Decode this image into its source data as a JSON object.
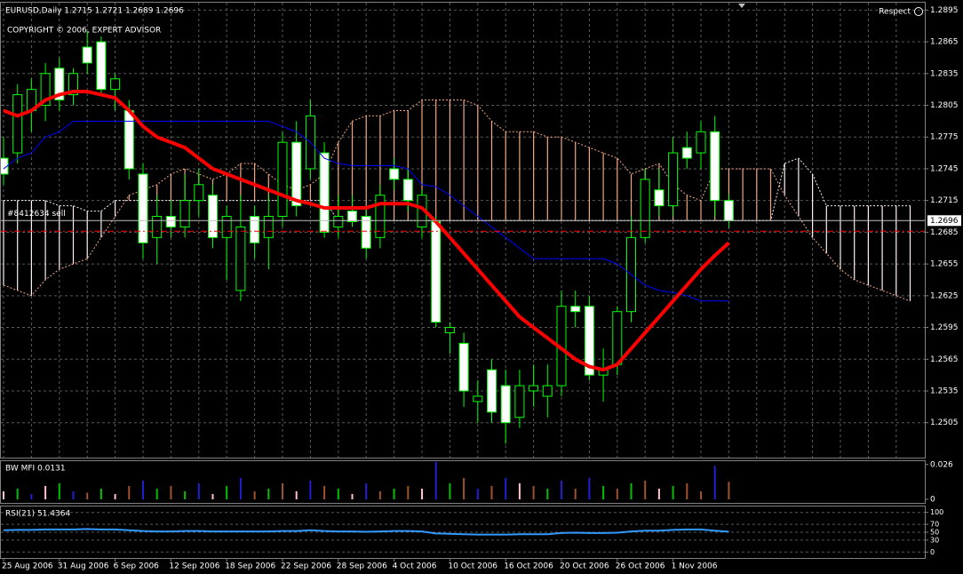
{
  "chart_data": [
    {
      "type": "candlestick",
      "title": "EURUSD,Daily  1.2715 1.2721 1.2689 1.2696",
      "subtitle": "COPYRIGHT © 2006, EXPERT ADVISOR",
      "corner_label": "Respect",
      "categories": [
        "25 Aug 2006",
        null,
        null,
        null,
        "31 Aug 2006",
        null,
        null,
        null,
        "6 Sep 2006",
        null,
        null,
        null,
        "12 Sep 2006",
        null,
        null,
        null,
        "18 Sep 2006",
        null,
        null,
        null,
        "22 Sep 2006",
        null,
        null,
        null,
        "28 Sep 2006",
        null,
        null,
        null,
        "4 Oct 2006",
        null,
        null,
        null,
        "10 Oct 2006",
        null,
        null,
        null,
        "16 Oct 2006",
        null,
        null,
        null,
        "20 Oct 2006",
        null,
        null,
        null,
        "26 Oct 2006",
        null,
        null,
        null,
        "1 Nov 2006",
        null,
        null,
        null,
        null,
        null,
        null,
        null,
        null,
        null,
        null,
        null,
        null,
        null,
        null,
        null,
        null,
        null
      ],
      "candles": {
        "bull_color": "#000000",
        "bear_color": "#ffffff",
        "wick_color": "#00ff00",
        "open": [
          1.2755,
          1.276,
          1.28,
          1.2805,
          1.284,
          1.2815,
          1.286,
          1.2865,
          1.282,
          1.28,
          1.274,
          1.268,
          1.27,
          1.269,
          1.2715,
          1.272,
          1.268,
          1.263,
          1.27,
          1.268,
          1.27,
          1.277,
          1.2745,
          1.276,
          1.269,
          1.2705,
          1.27,
          1.268,
          1.2745,
          1.2735,
          1.269,
          1.2695,
          1.259,
          1.258,
          1.2525,
          1.2555,
          1.254,
          1.251,
          1.2535,
          1.253,
          1.254,
          1.2615,
          1.2615,
          1.255,
          1.256,
          1.261,
          1.268,
          1.2725,
          1.271,
          1.2765,
          1.276,
          1.278,
          1.2715,
          null,
          null,
          null,
          null,
          null,
          null,
          null,
          null,
          null,
          null,
          null,
          null,
          null
        ],
        "high": [
          1.2775,
          1.2825,
          1.283,
          1.2845,
          1.285,
          1.284,
          1.2875,
          1.287,
          1.2835,
          1.281,
          1.275,
          1.272,
          1.2715,
          1.274,
          1.2745,
          1.273,
          1.271,
          1.272,
          1.271,
          1.272,
          1.278,
          1.279,
          1.281,
          1.277,
          1.272,
          1.272,
          1.271,
          1.273,
          1.2755,
          1.2745,
          1.2725,
          1.27,
          1.26,
          1.259,
          1.2545,
          1.2565,
          1.2555,
          1.2555,
          1.256,
          1.256,
          1.263,
          1.263,
          1.2625,
          1.2575,
          1.2615,
          1.27,
          1.2745,
          1.2745,
          1.2775,
          1.278,
          1.279,
          1.2795,
          1.2721,
          null,
          null,
          null,
          null,
          null,
          null,
          null,
          null,
          null,
          null,
          null,
          null,
          null
        ],
        "low": [
          1.273,
          1.275,
          1.278,
          1.279,
          1.28,
          1.2805,
          1.2835,
          1.2815,
          1.28,
          1.2735,
          1.266,
          1.2655,
          1.268,
          1.268,
          1.27,
          1.267,
          1.264,
          1.262,
          1.266,
          1.265,
          1.269,
          1.27,
          1.2735,
          1.268,
          1.268,
          1.269,
          1.266,
          1.267,
          1.2725,
          1.2705,
          1.268,
          1.2595,
          1.257,
          1.252,
          1.2505,
          1.2505,
          1.2485,
          1.25,
          1.252,
          1.251,
          1.253,
          1.2595,
          1.2545,
          1.2525,
          1.255,
          1.26,
          1.2675,
          1.27,
          1.27,
          1.2745,
          1.2745,
          1.27,
          1.2689,
          null,
          null,
          null,
          null,
          null,
          null,
          null,
          null,
          null,
          null,
          null,
          null,
          null
        ],
        "close": [
          1.274,
          1.2815,
          1.282,
          1.2835,
          1.281,
          1.2835,
          1.2845,
          1.282,
          1.283,
          1.2745,
          1.2675,
          1.27,
          1.269,
          1.2715,
          1.273,
          1.268,
          1.27,
          1.269,
          1.2675,
          1.27,
          1.277,
          1.271,
          1.2795,
          1.2685,
          1.27,
          1.2695,
          1.267,
          1.272,
          1.2735,
          1.2715,
          1.272,
          1.26,
          1.2595,
          1.2535,
          1.253,
          1.2515,
          1.2505,
          1.254,
          1.254,
          1.254,
          1.2615,
          1.261,
          1.255,
          1.2555,
          1.261,
          1.268,
          1.2735,
          1.271,
          1.276,
          1.2755,
          1.278,
          1.2715,
          1.2696,
          null,
          null,
          null,
          null,
          null,
          null,
          null,
          null,
          null,
          null,
          null,
          null,
          null
        ]
      },
      "cloud": [
        {
          "color": "#f4a582",
          "values": [
            1.2635,
            1.263,
            1.2625,
            1.264,
            1.265,
            1.2655,
            1.266,
            1.268,
            1.27,
            1.272,
            1.2725,
            1.273,
            1.274,
            1.2745,
            1.274,
            1.2735,
            1.274,
            1.275,
            1.275,
            1.274,
            1.273,
            1.2725,
            1.273,
            1.274,
            1.277,
            1.279,
            1.2795,
            1.2795,
            1.28,
            1.28,
            1.281,
            1.281,
            1.281,
            1.281,
            1.2805,
            1.279,
            1.278,
            1.278,
            1.278,
            1.2775,
            1.2775,
            1.277,
            1.2765,
            1.276,
            1.2755,
            1.274,
            1.2745,
            1.275,
            1.273,
            1.272,
            1.2715,
            1.2745,
            1.2745,
            1.2745,
            1.2745,
            1.2745,
            1.272,
            1.27,
            1.268,
            1.2665,
            1.265,
            1.264,
            1.2635,
            1.263,
            1.2625,
            1.262
          ]
        },
        {
          "color": "#fff0f0",
          "values": [
            1.2715,
            1.2715,
            1.2715,
            1.2715,
            1.271,
            1.271,
            1.2705,
            1.2705,
            1.2715,
            1.2715,
            1.2715,
            1.2715,
            1.2715,
            1.2715,
            1.2715,
            1.2715,
            1.2715,
            1.2715,
            1.2715,
            1.2715,
            1.2715,
            1.2715,
            1.2715,
            1.2715,
            1.2696,
            1.2696,
            1.2696,
            1.2696,
            1.2696,
            1.2696,
            1.2696,
            1.2696,
            1.2696,
            1.2696,
            1.2696,
            1.2696,
            1.2696,
            1.2696,
            1.2696,
            1.2696,
            1.2696,
            1.2696,
            1.2696,
            1.2696,
            1.2696,
            1.2696,
            1.2696,
            1.2696,
            1.2696,
            1.2696,
            1.2696,
            1.2696,
            1.2696,
            1.2696,
            1.2696,
            1.2696,
            1.275,
            1.2755,
            1.274,
            1.271,
            1.271,
            1.271,
            1.271,
            1.271,
            1.271,
            1.271
          ]
        }
      ],
      "lines": [
        {
          "color": "#0000ff",
          "width": 1,
          "values": [
            1.2745,
            1.2755,
            1.276,
            1.2775,
            1.278,
            1.279,
            1.279,
            1.279,
            1.279,
            1.279,
            1.279,
            1.279,
            1.279,
            1.279,
            1.279,
            1.279,
            1.279,
            1.279,
            1.279,
            1.279,
            1.2785,
            1.278,
            1.277,
            1.2755,
            1.275,
            1.2748,
            1.2748,
            1.2748,
            1.2748,
            1.2745,
            1.273,
            1.2728,
            1.272,
            1.271,
            1.27,
            1.269,
            1.268,
            1.267,
            1.266,
            1.266,
            1.266,
            1.266,
            1.266,
            1.266,
            1.2655,
            1.2645,
            1.2635,
            1.263,
            1.2628,
            1.2625,
            1.262,
            1.262,
            1.262,
            null,
            null,
            null,
            null,
            null,
            null,
            null,
            null,
            null,
            null,
            null,
            null,
            null
          ]
        },
        {
          "color": "#ff0000",
          "width": 4,
          "values": [
            1.28,
            1.2795,
            1.28,
            1.281,
            1.2815,
            1.2818,
            1.2818,
            1.2815,
            1.2812,
            1.28,
            1.2785,
            1.2775,
            1.277,
            1.2765,
            1.2755,
            1.2745,
            1.274,
            1.2735,
            1.273,
            1.2725,
            1.272,
            1.2715,
            1.2712,
            1.2708,
            1.2708,
            1.2708,
            1.2708,
            1.2712,
            1.2712,
            1.2712,
            1.2708,
            1.2695,
            1.268,
            1.2665,
            1.265,
            1.2635,
            1.262,
            1.2605,
            1.2595,
            1.2585,
            1.2575,
            1.2565,
            1.2558,
            1.2555,
            1.256,
            1.2575,
            1.259,
            1.2605,
            1.262,
            1.2635,
            1.265,
            1.2663,
            1.2675,
            null,
            null,
            null,
            null,
            null,
            null,
            null,
            null,
            null,
            null,
            null,
            null,
            null
          ]
        }
      ],
      "levels": [
        {
          "value": 1.2696,
          "label": "#8412634 sell",
          "color": "#c0c0c0"
        },
        {
          "value": 1.2686,
          "color": "#ff0000",
          "dash": "7,3,2,3"
        }
      ],
      "price_label": 1.2696,
      "ylim": [
        1.2472,
        1.2902
      ],
      "yticks": [
        1.2505,
        1.2535,
        1.2565,
        1.2595,
        1.2625,
        1.2655,
        1.2685,
        1.2715,
        1.2745,
        1.2775,
        1.2805,
        1.2835,
        1.2865,
        1.2895
      ],
      "grid": true
    },
    {
      "type": "bar",
      "title": "BW MFI 0.0131",
      "values": [
        0.006,
        0.008,
        0.004,
        0.01,
        0.012,
        0.006,
        0.005,
        0.008,
        0.004,
        0.01,
        0.014,
        0.008,
        0.01,
        0.006,
        0.012,
        0.004,
        0.01,
        0.016,
        0.006,
        0.008,
        0.012,
        0.006,
        0.014,
        0.01,
        0.008,
        0.004,
        0.012,
        0.006,
        0.008,
        0.01,
        0.008,
        0.028,
        0.012,
        0.016,
        0.008,
        0.01,
        0.016,
        0.012,
        0.01,
        0.008,
        0.014,
        0.008,
        0.016,
        0.01,
        0.008,
        0.012,
        0.014,
        0.008,
        0.01,
        0.012,
        0.006,
        0.025,
        0.0131
      ],
      "colors": [
        "#ffc0cb",
        "#00c000",
        "#2020d0",
        "#ffc0cb",
        "#00c000",
        "#2020d0",
        "#a0522d",
        "#00c000",
        "#ffc0cb",
        "#a0522d",
        "#2020d0",
        "#00c000",
        "#a0522d",
        "#00c000",
        "#2020d0",
        "#ffc0cb",
        "#00c000",
        "#2020d0",
        "#a0522d",
        "#00c000",
        "#a0522d",
        "#ffc0cb",
        "#2020d0",
        "#a0522d",
        "#00c000",
        "#ffc0cb",
        "#2020d0",
        "#a0522d",
        "#00c000",
        "#a0522d",
        "#ffc0cb",
        "#2020d0",
        "#00c000",
        "#a0522d",
        "#2020d0",
        "#a0522d",
        "#2020d0",
        "#ffc0cb",
        "#a0522d",
        "#00c000",
        "#2020d0",
        "#a0522d",
        "#2020d0",
        "#00c000",
        "#a0522d",
        "#00c000",
        "#a0522d",
        "#ffc0cb",
        "#00c000",
        "#a0522d",
        "#a0522d",
        "#2020d0",
        "#a0522d"
      ],
      "ylim": [
        0,
        0.0285
      ],
      "yticks": [
        0,
        0.026
      ]
    },
    {
      "type": "line",
      "title": "RSI(21) 51.4364",
      "color": "#3399ff",
      "values": [
        55,
        56,
        56,
        57,
        57,
        57,
        58,
        57,
        57,
        55,
        53,
        52,
        52,
        53,
        53,
        52,
        52,
        52,
        52,
        52,
        53,
        53,
        55,
        53,
        52,
        52,
        51,
        52,
        53,
        53,
        52,
        47,
        46,
        45,
        44,
        44,
        44,
        45,
        45,
        45,
        48,
        49,
        48,
        48,
        49,
        52,
        54,
        54,
        56,
        57,
        57,
        54,
        51.4364
      ],
      "ylim": [
        -15,
        115
      ],
      "yticks": [
        0,
        30,
        50,
        70,
        100
      ],
      "grid": true
    }
  ]
}
